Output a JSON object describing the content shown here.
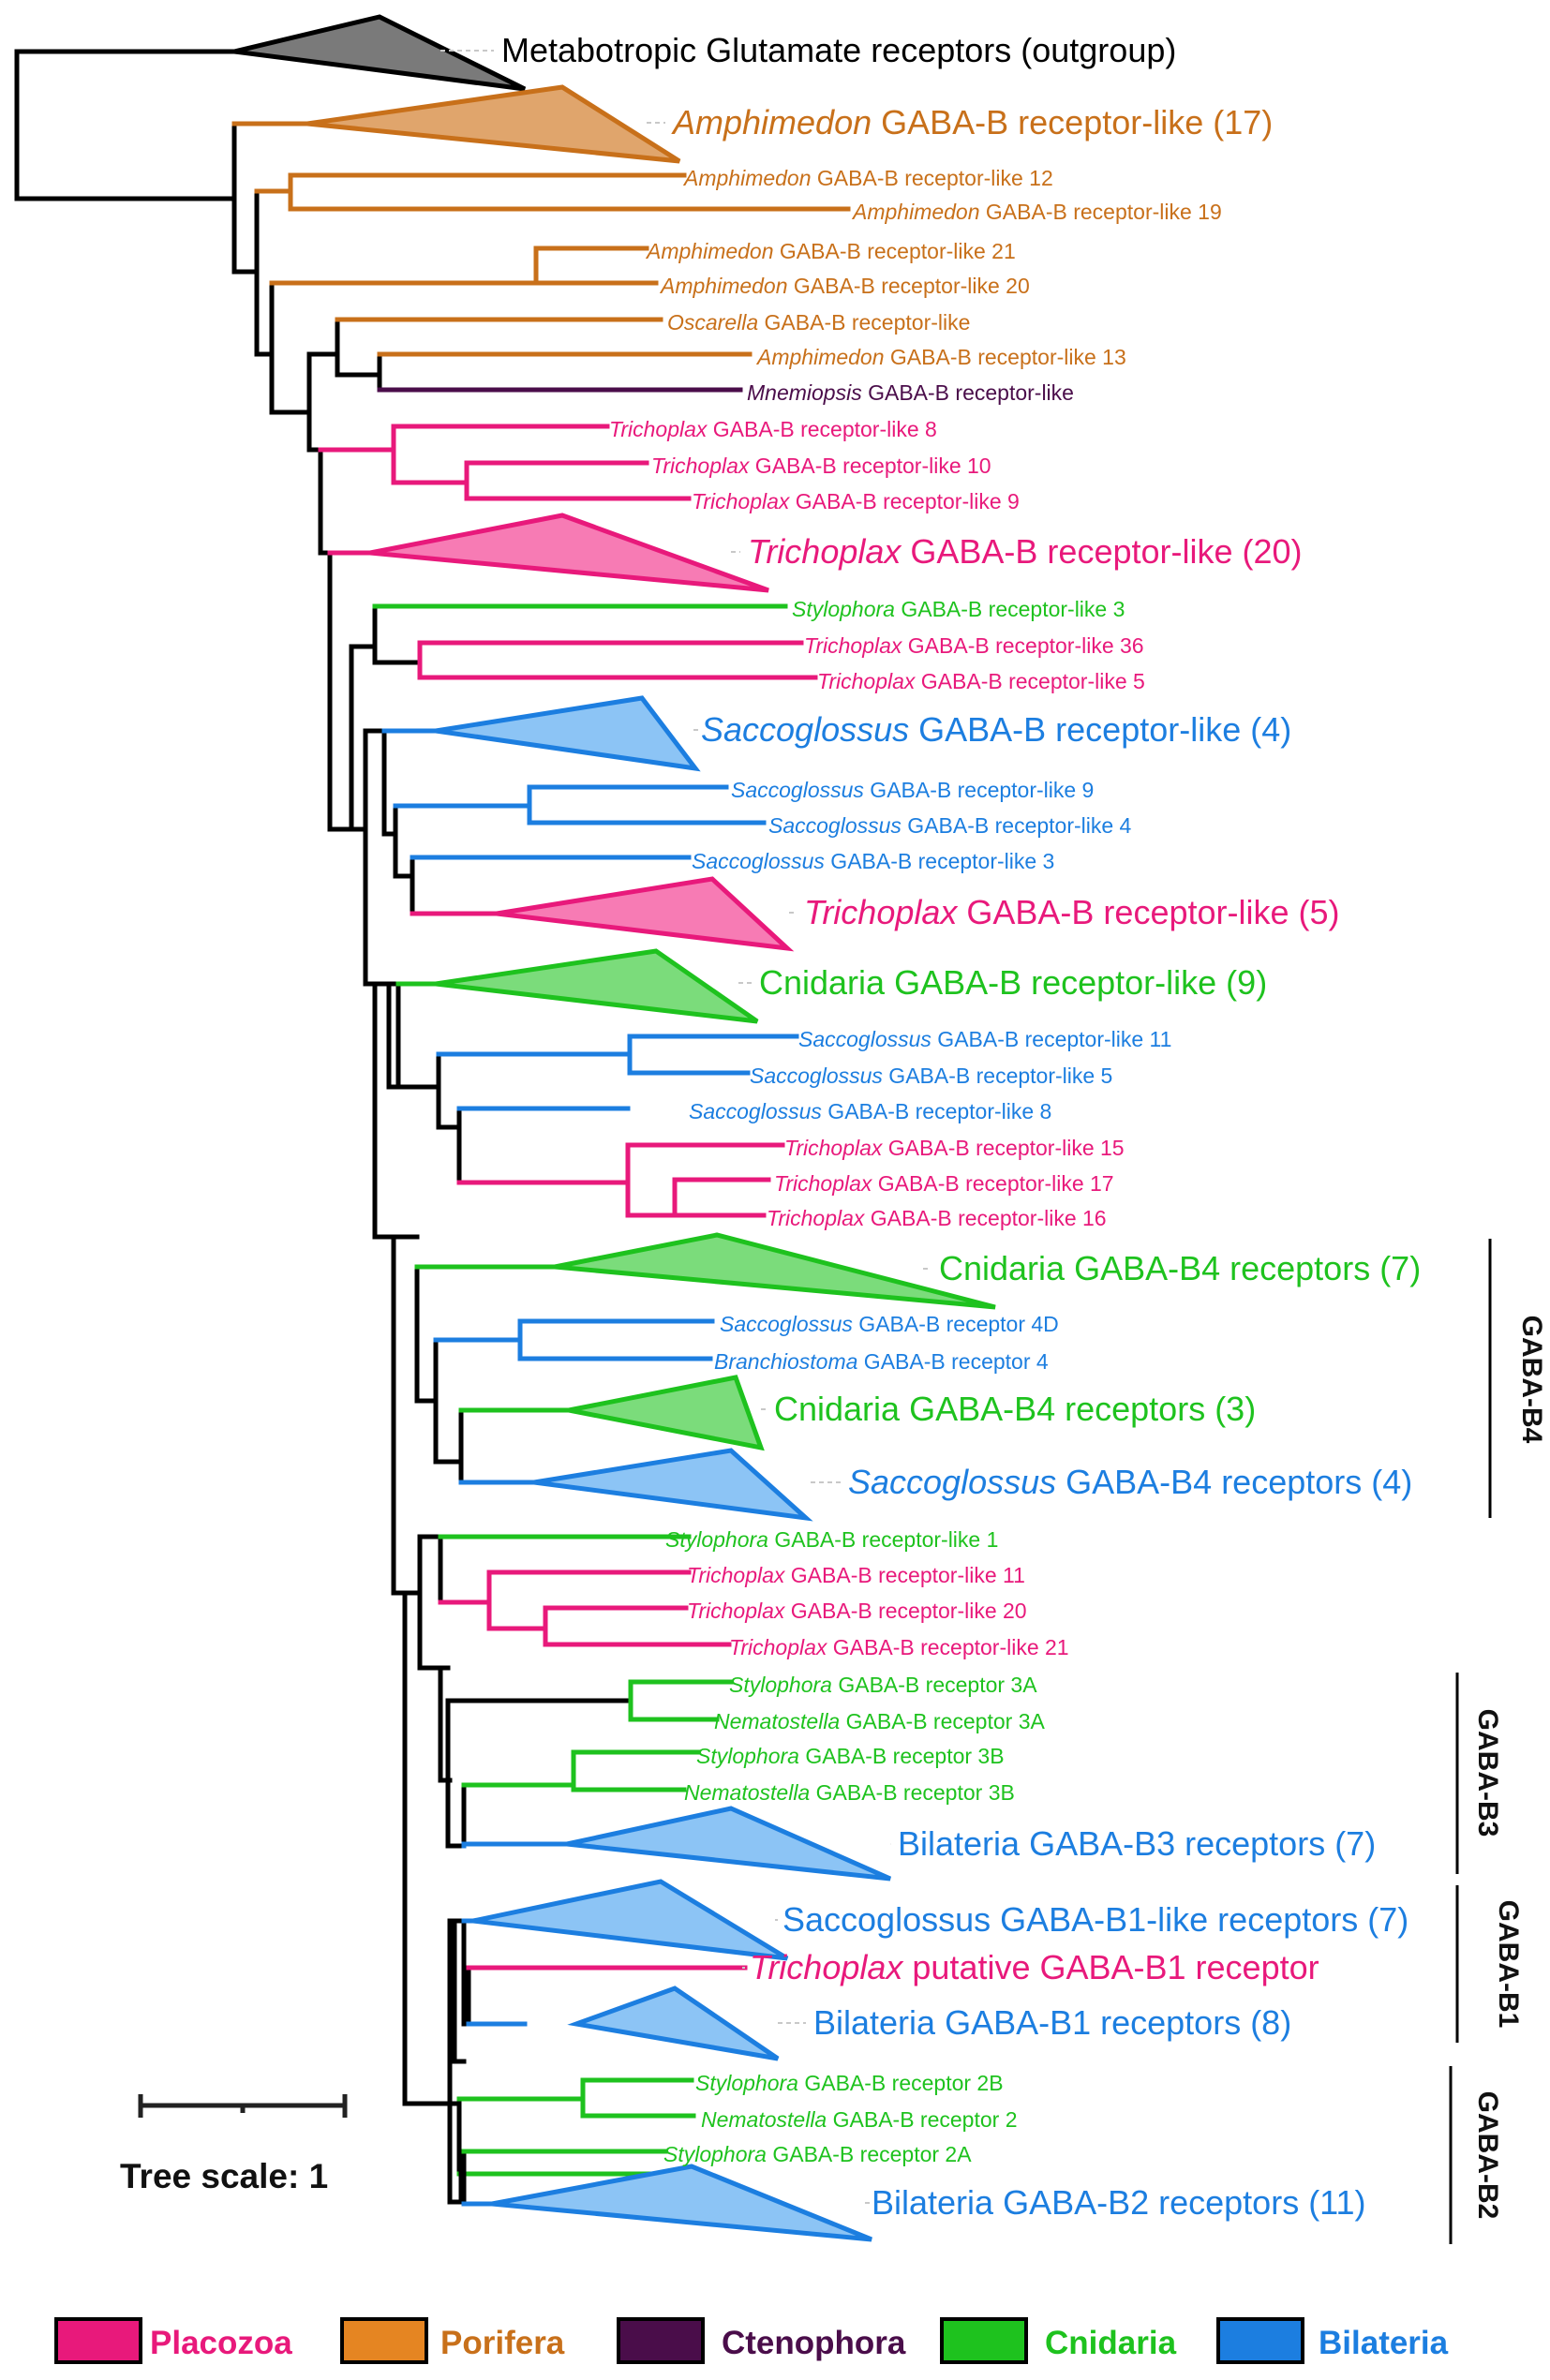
{
  "colors": {
    "Placozoa": "#e8197b",
    "Porifera": "#c8701a",
    "Ctenophora": "#4a0d4a",
    "Cnidaria": "#1ec21e",
    "Bilateria": "#1c7ee0",
    "outgroup": "#000000",
    "Placozoa_fill": "#f77bb4",
    "Porifera_fill": "#e0a56c",
    "Cnidaria_fill": "#7bdc7b",
    "Bilateria_fill": "#8cc4f5",
    "outgroup_fill": "#7a7a7a"
  },
  "leaves": [
    {
      "id": "L1",
      "italic": "",
      "rest": "Metabotropic Glutamate receptors (outgroup)",
      "clade": "outgroup",
      "collapsed": true
    },
    {
      "id": "L2",
      "italic": "Amphimedon",
      "rest": " GABA-B receptor-like (17)",
      "clade": "Porifera",
      "collapsed": true
    },
    {
      "id": "L3",
      "italic": "Amphimedon",
      "rest": " GABA-B receptor-like 12",
      "clade": "Porifera"
    },
    {
      "id": "L4",
      "italic": "Amphimedon",
      "rest": " GABA-B receptor-like 19",
      "clade": "Porifera"
    },
    {
      "id": "L5",
      "italic": "Amphimedon",
      "rest": " GABA-B receptor-like 21",
      "clade": "Porifera"
    },
    {
      "id": "L6",
      "italic": "Amphimedon",
      "rest": " GABA-B receptor-like 20",
      "clade": "Porifera"
    },
    {
      "id": "L7",
      "italic": "Oscarella",
      "rest": " GABA-B receptor-like",
      "clade": "Porifera"
    },
    {
      "id": "L8",
      "italic": "Amphimedon",
      "rest": " GABA-B receptor-like 13",
      "clade": "Porifera"
    },
    {
      "id": "L9",
      "italic": "Mnemiopsis",
      "rest": " GABA-B receptor-like",
      "clade": "Ctenophora"
    },
    {
      "id": "L10",
      "italic": "Trichoplax",
      "rest": " GABA-B receptor-like 8",
      "clade": "Placozoa"
    },
    {
      "id": "L11",
      "italic": "Trichoplax",
      "rest": " GABA-B receptor-like 10",
      "clade": "Placozoa"
    },
    {
      "id": "L12",
      "italic": "Trichoplax",
      "rest": " GABA-B receptor-like 9",
      "clade": "Placozoa"
    },
    {
      "id": "L13",
      "italic": "Trichoplax",
      "rest": " GABA-B receptor-like (20)",
      "clade": "Placozoa",
      "collapsed": true
    },
    {
      "id": "L14",
      "italic": "Stylophora",
      "rest": " GABA-B receptor-like 3",
      "clade": "Cnidaria"
    },
    {
      "id": "L15",
      "italic": "Trichoplax",
      "rest": " GABA-B receptor-like 36",
      "clade": "Placozoa"
    },
    {
      "id": "L16",
      "italic": "Trichoplax",
      "rest": " GABA-B receptor-like 5",
      "clade": "Placozoa"
    },
    {
      "id": "L17",
      "italic": "Saccoglossus",
      "rest": " GABA-B receptor-like (4)",
      "clade": "Bilateria",
      "collapsed": true
    },
    {
      "id": "L18",
      "italic": "Saccoglossus",
      "rest": " GABA-B receptor-like 9",
      "clade": "Bilateria"
    },
    {
      "id": "L19",
      "italic": "Saccoglossus",
      "rest": " GABA-B receptor-like 4",
      "clade": "Bilateria"
    },
    {
      "id": "L20",
      "italic": "Saccoglossus",
      "rest": " GABA-B receptor-like 3",
      "clade": "Bilateria"
    },
    {
      "id": "L21",
      "italic": "Trichoplax",
      "rest": " GABA-B receptor-like (5)",
      "clade": "Placozoa",
      "collapsed": true
    },
    {
      "id": "L22",
      "italic": "",
      "rest": "Cnidaria GABA-B receptor-like (9)",
      "clade": "Cnidaria",
      "collapsed": true
    },
    {
      "id": "L23",
      "italic": "Saccoglossus",
      "rest": " GABA-B receptor-like 11",
      "clade": "Bilateria"
    },
    {
      "id": "L24",
      "italic": "Saccoglossus",
      "rest": " GABA-B receptor-like 5",
      "clade": "Bilateria"
    },
    {
      "id": "L25",
      "italic": "Saccoglossus",
      "rest": " GABA-B receptor-like 8",
      "clade": "Bilateria"
    },
    {
      "id": "L26",
      "italic": "Trichoplax",
      "rest": " GABA-B receptor-like 15",
      "clade": "Placozoa"
    },
    {
      "id": "L27",
      "italic": "Trichoplax",
      "rest": " GABA-B receptor-like 17",
      "clade": "Placozoa"
    },
    {
      "id": "L28",
      "italic": "Trichoplax",
      "rest": " GABA-B receptor-like 16",
      "clade": "Placozoa"
    },
    {
      "id": "L29",
      "italic": "",
      "rest": "Cnidaria GABA-B4 receptors (7)",
      "clade": "Cnidaria",
      "collapsed": true
    },
    {
      "id": "L30",
      "italic": "Saccoglossus",
      "rest": " GABA-B receptor 4D",
      "clade": "Bilateria"
    },
    {
      "id": "L31",
      "italic": "Branchiostoma",
      "rest": " GABA-B receptor 4",
      "clade": "Bilateria"
    },
    {
      "id": "L32",
      "italic": "",
      "rest": "Cnidaria GABA-B4 receptors (3)",
      "clade": "Cnidaria",
      "collapsed": true
    },
    {
      "id": "L33",
      "italic": "Saccoglossus",
      "rest": " GABA-B4 receptors (4)",
      "clade": "Bilateria",
      "collapsed": true
    },
    {
      "id": "L34",
      "italic": "Stylophora",
      "rest": " GABA-B receptor-like 1",
      "clade": "Cnidaria"
    },
    {
      "id": "L35",
      "italic": "Trichoplax",
      "rest": " GABA-B receptor-like 11",
      "clade": "Placozoa"
    },
    {
      "id": "L36",
      "italic": "Trichoplax",
      "rest": " GABA-B receptor-like 20",
      "clade": "Placozoa"
    },
    {
      "id": "L37",
      "italic": "Trichoplax",
      "rest": " GABA-B receptor-like 21",
      "clade": "Placozoa"
    },
    {
      "id": "L38",
      "italic": "Stylophora",
      "rest": " GABA-B receptor 3A",
      "clade": "Cnidaria"
    },
    {
      "id": "L39",
      "italic": "Nematostella",
      "rest": " GABA-B receptor 3A",
      "clade": "Cnidaria"
    },
    {
      "id": "L40",
      "italic": "Stylophora",
      "rest": " GABA-B receptor 3B",
      "clade": "Cnidaria"
    },
    {
      "id": "L41",
      "italic": "Nematostella",
      "rest": " GABA-B receptor 3B",
      "clade": "Cnidaria"
    },
    {
      "id": "L42",
      "italic": "",
      "rest": "Bilateria GABA-B3 receptors (7)",
      "clade": "Bilateria",
      "collapsed": true
    },
    {
      "id": "L43",
      "italic": "",
      "rest": "Saccoglossus GABA-B1-like receptors (7)",
      "clade": "Bilateria",
      "collapsed": true
    },
    {
      "id": "L44",
      "italic": "Trichoplax",
      "rest": " putative GABA-B1 receptor",
      "clade": "Placozoa"
    },
    {
      "id": "L45",
      "italic": "",
      "rest": "Bilateria GABA-B1 receptors (8)",
      "clade": "Bilateria",
      "collapsed": true
    },
    {
      "id": "L46",
      "italic": "Stylophora",
      "rest": " GABA-B receptor 2B",
      "clade": "Cnidaria"
    },
    {
      "id": "L47",
      "italic": "Nematostella",
      "rest": " GABA-B receptor 2",
      "clade": "Cnidaria"
    },
    {
      "id": "L48",
      "italic": "Stylophora",
      "rest": " GABA-B receptor 2A",
      "clade": "Cnidaria"
    },
    {
      "id": "L49",
      "italic": "",
      "rest": "Bilateria GABA-B2 receptors (11)",
      "clade": "Bilateria",
      "collapsed": true
    }
  ],
  "groups": [
    {
      "label": "GABA-B4"
    },
    {
      "label": "GABA-B3"
    },
    {
      "label": "GABA-B1"
    },
    {
      "label": "GABA-B2"
    }
  ],
  "scale": {
    "label": "Tree scale: 1"
  },
  "legend": [
    {
      "name": "Placozoa",
      "clade": "Placozoa"
    },
    {
      "name": "Porifera",
      "clade": "Porifera"
    },
    {
      "name": "Ctenophora",
      "clade": "Ctenophora"
    },
    {
      "name": "Cnidaria",
      "clade": "Cnidaria"
    },
    {
      "name": "Bilateria",
      "clade": "Bilateria"
    }
  ]
}
